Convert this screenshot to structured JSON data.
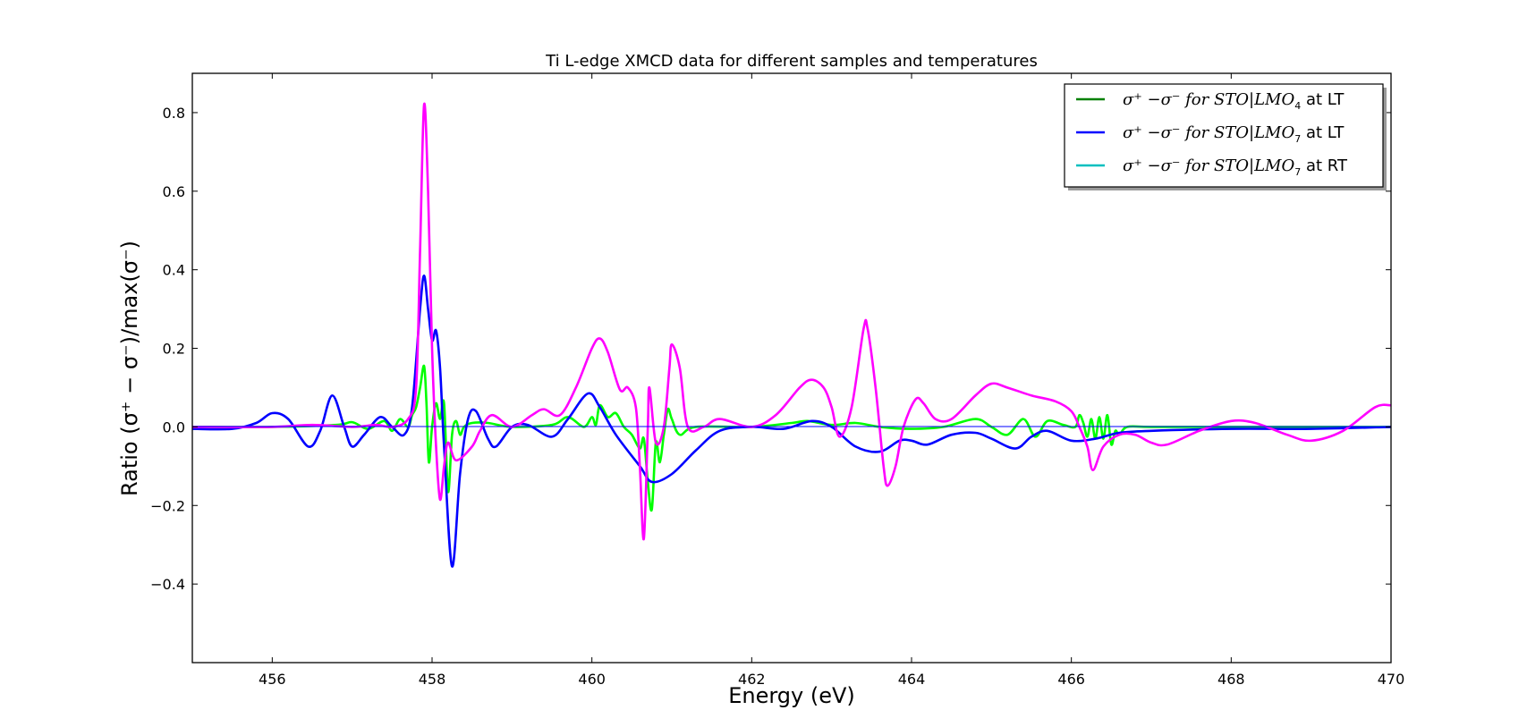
{
  "chart_data": {
    "type": "line",
    "title": "Ti L-edge XMCD data for different samples and temperatures",
    "xlabel": "Energy (eV)",
    "ylabel": "Ratio (σ⁺ − σ⁻)/max(σ⁻)",
    "xlim": [
      455,
      470
    ],
    "ylim": [
      -0.6,
      0.9
    ],
    "xticks": [
      456,
      458,
      460,
      462,
      464,
      466,
      468,
      470
    ],
    "xtick_labels": [
      "456",
      "458",
      "460",
      "462",
      "464",
      "466",
      "468",
      "470"
    ],
    "yticks": [
      -0.4,
      -0.2,
      0.0,
      0.2,
      0.4,
      0.6,
      0.8
    ],
    "ytick_labels": [
      "−0.4",
      "−0.2",
      "0.0",
      "0.2",
      "0.4",
      "0.6",
      "0.8"
    ],
    "grid": false,
    "legend_position": "upper-right",
    "legend": [
      {
        "prefix": "σ⁺ −σ⁻  for ",
        "sample": "STO|LMO",
        "subscript": "4",
        "suffix": " at LT",
        "color": "#008000"
      },
      {
        "prefix": "σ⁺ −σ⁻  for ",
        "sample": "STO|LMO",
        "subscript": "7",
        "suffix": " at LT",
        "color": "#0000ff"
      },
      {
        "prefix": "σ⁺ −σ⁻  for ",
        "sample": "STO|LMO",
        "subscript": "7",
        "suffix": " at RT",
        "color": "#00bfbf"
      }
    ],
    "series": [
      {
        "color": "#00ff00",
        "points": [
          [
            455.0,
            0.0
          ],
          [
            456.0,
            0.0
          ],
          [
            456.8,
            0.005
          ],
          [
            457.0,
            0.012
          ],
          [
            457.2,
            -0.005
          ],
          [
            457.4,
            0.015
          ],
          [
            457.5,
            -0.01
          ],
          [
            457.6,
            0.02
          ],
          [
            457.7,
            0.0
          ],
          [
            457.75,
            0.03
          ],
          [
            457.8,
            0.05
          ],
          [
            457.85,
            0.1
          ],
          [
            457.9,
            0.155
          ],
          [
            457.93,
            0.06
          ],
          [
            457.96,
            -0.09
          ],
          [
            458.0,
            0.0
          ],
          [
            458.05,
            0.06
          ],
          [
            458.1,
            0.02
          ],
          [
            458.15,
            0.06
          ],
          [
            458.2,
            -0.165
          ],
          [
            458.25,
            -0.02
          ],
          [
            458.3,
            0.015
          ],
          [
            458.35,
            -0.02
          ],
          [
            458.4,
            0.0
          ],
          [
            458.5,
            0.01
          ],
          [
            458.7,
            0.01
          ],
          [
            459.0,
            0.0
          ],
          [
            459.5,
            0.005
          ],
          [
            459.7,
            0.025
          ],
          [
            459.9,
            0.0
          ],
          [
            460.0,
            0.025
          ],
          [
            460.05,
            0.005
          ],
          [
            460.1,
            0.055
          ],
          [
            460.2,
            0.025
          ],
          [
            460.3,
            0.035
          ],
          [
            460.4,
            0.0
          ],
          [
            460.5,
            -0.02
          ],
          [
            460.6,
            -0.055
          ],
          [
            460.65,
            -0.03
          ],
          [
            460.7,
            -0.14
          ],
          [
            460.75,
            -0.21
          ],
          [
            460.8,
            -0.04
          ],
          [
            460.85,
            -0.09
          ],
          [
            460.9,
            -0.02
          ],
          [
            460.95,
            0.045
          ],
          [
            461.0,
            0.02
          ],
          [
            461.1,
            -0.02
          ],
          [
            461.3,
            0.0
          ],
          [
            462.0,
            0.0
          ],
          [
            462.5,
            0.01
          ],
          [
            462.7,
            0.015
          ],
          [
            463.0,
            0.005
          ],
          [
            463.3,
            0.01
          ],
          [
            463.6,
            0.0
          ],
          [
            464.0,
            -0.005
          ],
          [
            464.4,
            0.0
          ],
          [
            464.8,
            0.02
          ],
          [
            465.0,
            0.0
          ],
          [
            465.2,
            -0.02
          ],
          [
            465.4,
            0.02
          ],
          [
            465.55,
            -0.025
          ],
          [
            465.7,
            0.015
          ],
          [
            465.9,
            0.005
          ],
          [
            466.05,
            0.0
          ],
          [
            466.1,
            0.03
          ],
          [
            466.15,
            0.01
          ],
          [
            466.2,
            -0.025
          ],
          [
            466.25,
            0.02
          ],
          [
            466.3,
            -0.03
          ],
          [
            466.35,
            0.025
          ],
          [
            466.4,
            -0.03
          ],
          [
            466.45,
            0.03
          ],
          [
            466.5,
            -0.045
          ],
          [
            466.55,
            -0.01
          ],
          [
            466.6,
            -0.02
          ],
          [
            466.7,
            0.0
          ],
          [
            467.0,
            0.0
          ],
          [
            468.0,
            0.0
          ],
          [
            470.0,
            0.0
          ]
        ]
      },
      {
        "color": "#0000ff",
        "points": [
          [
            455.0,
            -0.005
          ],
          [
            455.5,
            -0.005
          ],
          [
            455.8,
            0.01
          ],
          [
            456.0,
            0.035
          ],
          [
            456.2,
            0.02
          ],
          [
            456.45,
            -0.05
          ],
          [
            456.6,
            -0.01
          ],
          [
            456.75,
            0.08
          ],
          [
            456.9,
            0.0
          ],
          [
            457.0,
            -0.05
          ],
          [
            457.15,
            -0.02
          ],
          [
            457.35,
            0.025
          ],
          [
            457.5,
            0.0
          ],
          [
            457.65,
            -0.02
          ],
          [
            457.75,
            0.05
          ],
          [
            457.85,
            0.3
          ],
          [
            457.9,
            0.385
          ],
          [
            457.95,
            0.3
          ],
          [
            458.0,
            0.22
          ],
          [
            458.05,
            0.245
          ],
          [
            458.1,
            0.15
          ],
          [
            458.15,
            -0.05
          ],
          [
            458.25,
            -0.355
          ],
          [
            458.35,
            -0.12
          ],
          [
            458.45,
            0.02
          ],
          [
            458.55,
            0.04
          ],
          [
            458.7,
            -0.03
          ],
          [
            458.8,
            -0.05
          ],
          [
            459.0,
            0.0
          ],
          [
            459.2,
            0.005
          ],
          [
            459.5,
            -0.025
          ],
          [
            459.7,
            0.02
          ],
          [
            459.95,
            0.085
          ],
          [
            460.1,
            0.05
          ],
          [
            460.3,
            -0.02
          ],
          [
            460.6,
            -0.1
          ],
          [
            460.75,
            -0.14
          ],
          [
            461.0,
            -0.12
          ],
          [
            461.3,
            -0.06
          ],
          [
            461.6,
            -0.01
          ],
          [
            462.0,
            0.0
          ],
          [
            462.4,
            -0.005
          ],
          [
            462.75,
            0.015
          ],
          [
            463.0,
            0.0
          ],
          [
            463.3,
            -0.05
          ],
          [
            463.6,
            -0.063
          ],
          [
            463.85,
            -0.035
          ],
          [
            464.0,
            -0.035
          ],
          [
            464.2,
            -0.045
          ],
          [
            464.5,
            -0.02
          ],
          [
            464.8,
            -0.015
          ],
          [
            465.0,
            -0.03
          ],
          [
            465.3,
            -0.055
          ],
          [
            465.5,
            -0.025
          ],
          [
            465.7,
            -0.01
          ],
          [
            466.0,
            -0.035
          ],
          [
            466.3,
            -0.03
          ],
          [
            466.6,
            -0.015
          ],
          [
            467.0,
            -0.01
          ],
          [
            468.0,
            -0.005
          ],
          [
            469.0,
            -0.005
          ],
          [
            470.0,
            0.0
          ]
        ]
      },
      {
        "color": "#ff00ff",
        "points": [
          [
            455.0,
            0.0
          ],
          [
            456.0,
            0.0
          ],
          [
            456.5,
            0.005
          ],
          [
            457.0,
            0.0
          ],
          [
            457.3,
            0.005
          ],
          [
            457.5,
            0.0
          ],
          [
            457.7,
            0.02
          ],
          [
            457.8,
            0.1
          ],
          [
            457.85,
            0.45
          ],
          [
            457.9,
            0.82
          ],
          [
            457.95,
            0.6
          ],
          [
            458.0,
            0.2
          ],
          [
            458.05,
            -0.05
          ],
          [
            458.1,
            -0.185
          ],
          [
            458.15,
            -0.1
          ],
          [
            458.2,
            -0.04
          ],
          [
            458.3,
            -0.085
          ],
          [
            458.5,
            -0.05
          ],
          [
            458.6,
            -0.01
          ],
          [
            458.75,
            0.03
          ],
          [
            459.0,
            0.0
          ],
          [
            459.25,
            0.03
          ],
          [
            459.4,
            0.045
          ],
          [
            459.6,
            0.03
          ],
          [
            459.8,
            0.1
          ],
          [
            460.0,
            0.2
          ],
          [
            460.1,
            0.225
          ],
          [
            460.2,
            0.19
          ],
          [
            460.35,
            0.095
          ],
          [
            460.45,
            0.1
          ],
          [
            460.55,
            0.05
          ],
          [
            460.6,
            -0.1
          ],
          [
            460.65,
            -0.285
          ],
          [
            460.7,
            0.0
          ],
          [
            460.72,
            0.1
          ],
          [
            460.8,
            -0.04
          ],
          [
            460.9,
            0.0
          ],
          [
            460.97,
            0.15
          ],
          [
            461.0,
            0.21
          ],
          [
            461.1,
            0.15
          ],
          [
            461.2,
            0.0
          ],
          [
            461.4,
            0.0
          ],
          [
            461.6,
            0.02
          ],
          [
            462.0,
            0.0
          ],
          [
            462.3,
            0.03
          ],
          [
            462.6,
            0.1
          ],
          [
            462.75,
            0.12
          ],
          [
            462.9,
            0.1
          ],
          [
            463.0,
            0.05
          ],
          [
            463.1,
            -0.025
          ],
          [
            463.25,
            0.05
          ],
          [
            463.4,
            0.25
          ],
          [
            463.45,
            0.25
          ],
          [
            463.55,
            0.1
          ],
          [
            463.65,
            -0.1
          ],
          [
            463.7,
            -0.15
          ],
          [
            463.8,
            -0.1
          ],
          [
            463.9,
            0.0
          ],
          [
            464.05,
            0.07
          ],
          [
            464.15,
            0.06
          ],
          [
            464.3,
            0.02
          ],
          [
            464.5,
            0.02
          ],
          [
            464.8,
            0.08
          ],
          [
            465.0,
            0.11
          ],
          [
            465.2,
            0.1
          ],
          [
            465.5,
            0.08
          ],
          [
            465.8,
            0.065
          ],
          [
            466.0,
            0.04
          ],
          [
            466.1,
            0.0
          ],
          [
            466.2,
            -0.05
          ],
          [
            466.27,
            -0.11
          ],
          [
            466.4,
            -0.05
          ],
          [
            466.6,
            -0.02
          ],
          [
            466.8,
            -0.02
          ],
          [
            467.0,
            -0.04
          ],
          [
            467.2,
            -0.045
          ],
          [
            467.6,
            -0.01
          ],
          [
            468.0,
            0.015
          ],
          [
            468.3,
            0.01
          ],
          [
            468.7,
            -0.02
          ],
          [
            469.0,
            -0.035
          ],
          [
            469.4,
            -0.01
          ],
          [
            469.8,
            0.05
          ],
          [
            470.0,
            0.055
          ]
        ]
      }
    ]
  }
}
